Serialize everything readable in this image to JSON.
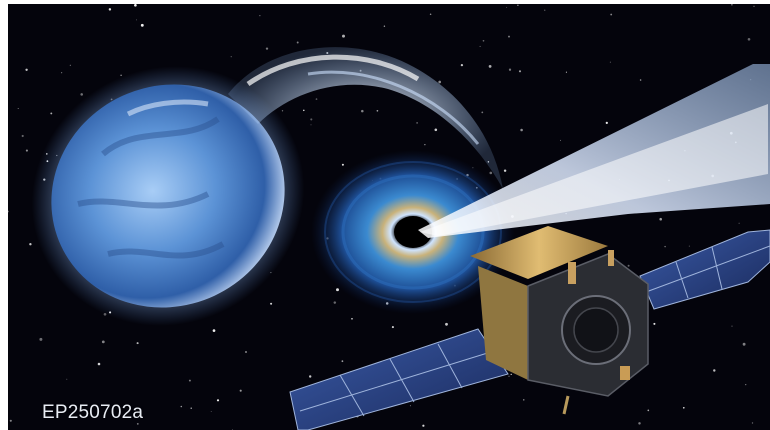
{
  "illustration": {
    "caption": "EP250702a",
    "subjects": [
      "star-icon",
      "black-hole-icon",
      "jet-icon",
      "satellite-icon"
    ],
    "colors": {
      "space": "#04040c",
      "star": "#7fb2ee",
      "disk": "#3d7fc4",
      "jet": "#e8f0ff",
      "solar_panel": "#2a3f7a",
      "satellite_foil": "#c9a15a",
      "satellite_body": "#2b2d33"
    }
  }
}
